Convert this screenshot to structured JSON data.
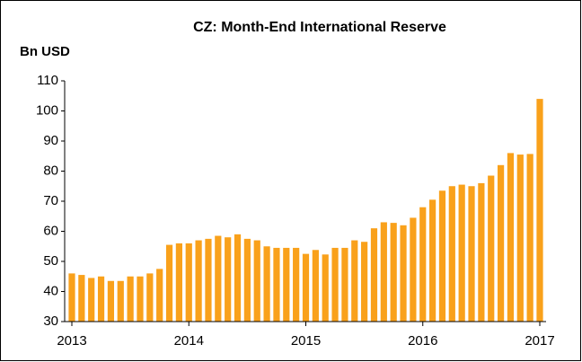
{
  "chart_data": {
    "type": "bar",
    "title": "CZ: Month-End International Reserve",
    "y_label": "Bn USD",
    "categories": [
      "2013",
      null,
      null,
      null,
      null,
      null,
      null,
      null,
      null,
      null,
      null,
      null,
      "2014",
      null,
      null,
      null,
      null,
      null,
      null,
      null,
      null,
      null,
      null,
      null,
      "2015",
      null,
      null,
      null,
      null,
      null,
      null,
      null,
      null,
      null,
      null,
      null,
      "2016",
      null,
      null,
      null,
      null,
      null,
      null,
      null,
      null,
      null,
      null,
      null,
      "2017"
    ],
    "values": [
      46,
      45.5,
      44.5,
      45,
      43.5,
      43.5,
      45,
      45,
      46,
      47.5,
      55.5,
      56,
      56,
      57,
      57.5,
      58.5,
      58,
      59,
      57.5,
      57,
      55,
      54.5,
      54.5,
      54.5,
      52.5,
      53.8,
      52.3,
      54.5,
      54.5,
      57,
      56.5,
      61,
      63,
      62.8,
      62,
      64.5,
      68,
      70.5,
      73.5,
      75,
      75.5,
      75,
      76,
      78.5,
      82,
      86,
      85.5,
      85.7,
      104
    ],
    "color": "#f9a11b",
    "ylim": [
      30,
      110
    ],
    "yticks": [
      30,
      40,
      50,
      60,
      70,
      80,
      90,
      100,
      110
    ]
  }
}
